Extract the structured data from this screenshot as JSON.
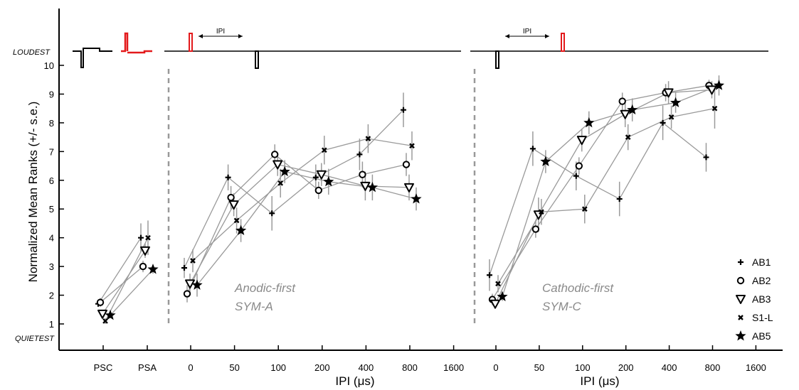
{
  "chart_data": {
    "type": "scatter",
    "title": "",
    "ylabel": "Normalized Mean Ranks (+/- s.e.)",
    "ylim": [
      1,
      10
    ],
    "yticks": [
      1,
      2,
      3,
      4,
      5,
      6,
      7,
      8,
      9,
      10
    ],
    "y_end_labels": {
      "top": "LOUDEST",
      "bottom": "QUIETEST"
    },
    "ipi_tick_labels": [
      "0",
      "50",
      "100",
      "200",
      "400",
      "800",
      "1600"
    ],
    "ipi_tick_values": [
      0,
      50,
      100,
      200,
      400,
      800,
      1600
    ],
    "panels": [
      {
        "id": "reference",
        "categories": [
          "PSC",
          "PSA"
        ]
      },
      {
        "id": "anodic",
        "xlabel": "IPI (μs)",
        "annotation": [
          "Anodic-first",
          "SYM-A"
        ],
        "waveform_label": "IPI"
      },
      {
        "id": "cathodic",
        "xlabel": "IPI (μs)",
        "annotation": [
          "Cathodic-first",
          "SYM-C"
        ],
        "waveform_label": "IPI"
      }
    ],
    "legend": {
      "position": "bottom-right"
    },
    "series": [
      {
        "name": "AB1",
        "marker": "plus",
        "reference": {
          "PSC": [
            1.7,
            0.1
          ],
          "PSA": [
            4.0,
            0.5
          ]
        },
        "anodic": {
          "x": [
            0,
            50,
            100,
            200,
            400,
            800
          ],
          "y": [
            2.95,
            6.1,
            4.85,
            6.1,
            6.9,
            8.45
          ],
          "err": [
            0.35,
            0.45,
            0.6,
            0.45,
            0.55,
            0.6
          ]
        },
        "cathodic": {
          "x": [
            0,
            50,
            100,
            200,
            400,
            800
          ],
          "y": [
            2.7,
            7.1,
            6.15,
            5.35,
            8.0,
            6.8
          ],
          "err": [
            0.55,
            0.6,
            0.5,
            0.6,
            0.6,
            0.5
          ]
        }
      },
      {
        "name": "AB2",
        "marker": "circle",
        "reference": {
          "PSC": [
            1.75,
            0.15
          ],
          "PSA": [
            3.0,
            0.2
          ]
        },
        "anodic": {
          "x": [
            0,
            50,
            100,
            200,
            400,
            800
          ],
          "y": [
            2.05,
            5.4,
            6.9,
            5.65,
            6.2,
            6.55
          ],
          "err": [
            0.3,
            0.4,
            0.35,
            0.3,
            0.45,
            0.4
          ]
        },
        "cathodic": {
          "x": [
            0,
            50,
            100,
            200,
            400,
            800
          ],
          "y": [
            1.85,
            4.3,
            6.5,
            8.75,
            9.05,
            9.3
          ],
          "err": [
            0.2,
            0.3,
            0.3,
            0.3,
            0.3,
            0.2
          ]
        }
      },
      {
        "name": "AB3",
        "marker": "triangle",
        "reference": {
          "PSC": [
            1.35,
            0.1
          ],
          "PSA": [
            3.55,
            0.25
          ]
        },
        "anodic": {
          "x": [
            0,
            50,
            100,
            200,
            400,
            800
          ],
          "y": [
            2.4,
            5.15,
            6.55,
            6.2,
            5.8,
            5.75
          ],
          "err": [
            0.35,
            0.4,
            0.4,
            0.4,
            0.5,
            0.45
          ]
        },
        "cathodic": {
          "x": [
            0,
            50,
            100,
            200,
            400,
            800
          ],
          "y": [
            1.7,
            4.8,
            7.4,
            8.3,
            9.05,
            9.15
          ],
          "err": [
            0.15,
            0.6,
            0.4,
            0.45,
            0.4,
            0.3
          ]
        }
      },
      {
        "name": "S1-L",
        "marker": "x",
        "reference": {
          "PSC": [
            1.1,
            0.1
          ],
          "PSA": [
            4.0,
            0.6
          ]
        },
        "anodic": {
          "x": [
            0,
            50,
            100,
            200,
            400,
            800
          ],
          "y": [
            3.2,
            4.6,
            5.9,
            7.05,
            7.45,
            7.2
          ],
          "err": [
            0.4,
            0.45,
            0.5,
            0.5,
            0.5,
            0.5
          ]
        },
        "cathodic": {
          "x": [
            0,
            50,
            100,
            200,
            400,
            800
          ],
          "y": [
            2.4,
            4.9,
            5.0,
            7.5,
            8.2,
            8.5
          ],
          "err": [
            0.3,
            0.45,
            0.5,
            0.45,
            0.4,
            0.7
          ]
        }
      },
      {
        "name": "AB5",
        "marker": "star",
        "reference": {
          "PSC": [
            1.3,
            0.1
          ],
          "PSA": [
            2.9,
            0.15
          ]
        },
        "anodic": {
          "x": [
            0,
            50,
            100,
            200,
            400,
            800
          ],
          "y": [
            2.35,
            4.25,
            6.3,
            5.95,
            5.75,
            5.35
          ],
          "err": [
            0.4,
            0.4,
            0.4,
            0.45,
            0.45,
            0.4
          ]
        },
        "cathodic": {
          "x": [
            0,
            50,
            100,
            200,
            400,
            800
          ],
          "y": [
            1.95,
            6.65,
            8.0,
            8.45,
            8.7,
            9.3
          ],
          "err": [
            0.15,
            0.4,
            0.4,
            0.4,
            0.35,
            0.35
          ]
        }
      }
    ]
  }
}
